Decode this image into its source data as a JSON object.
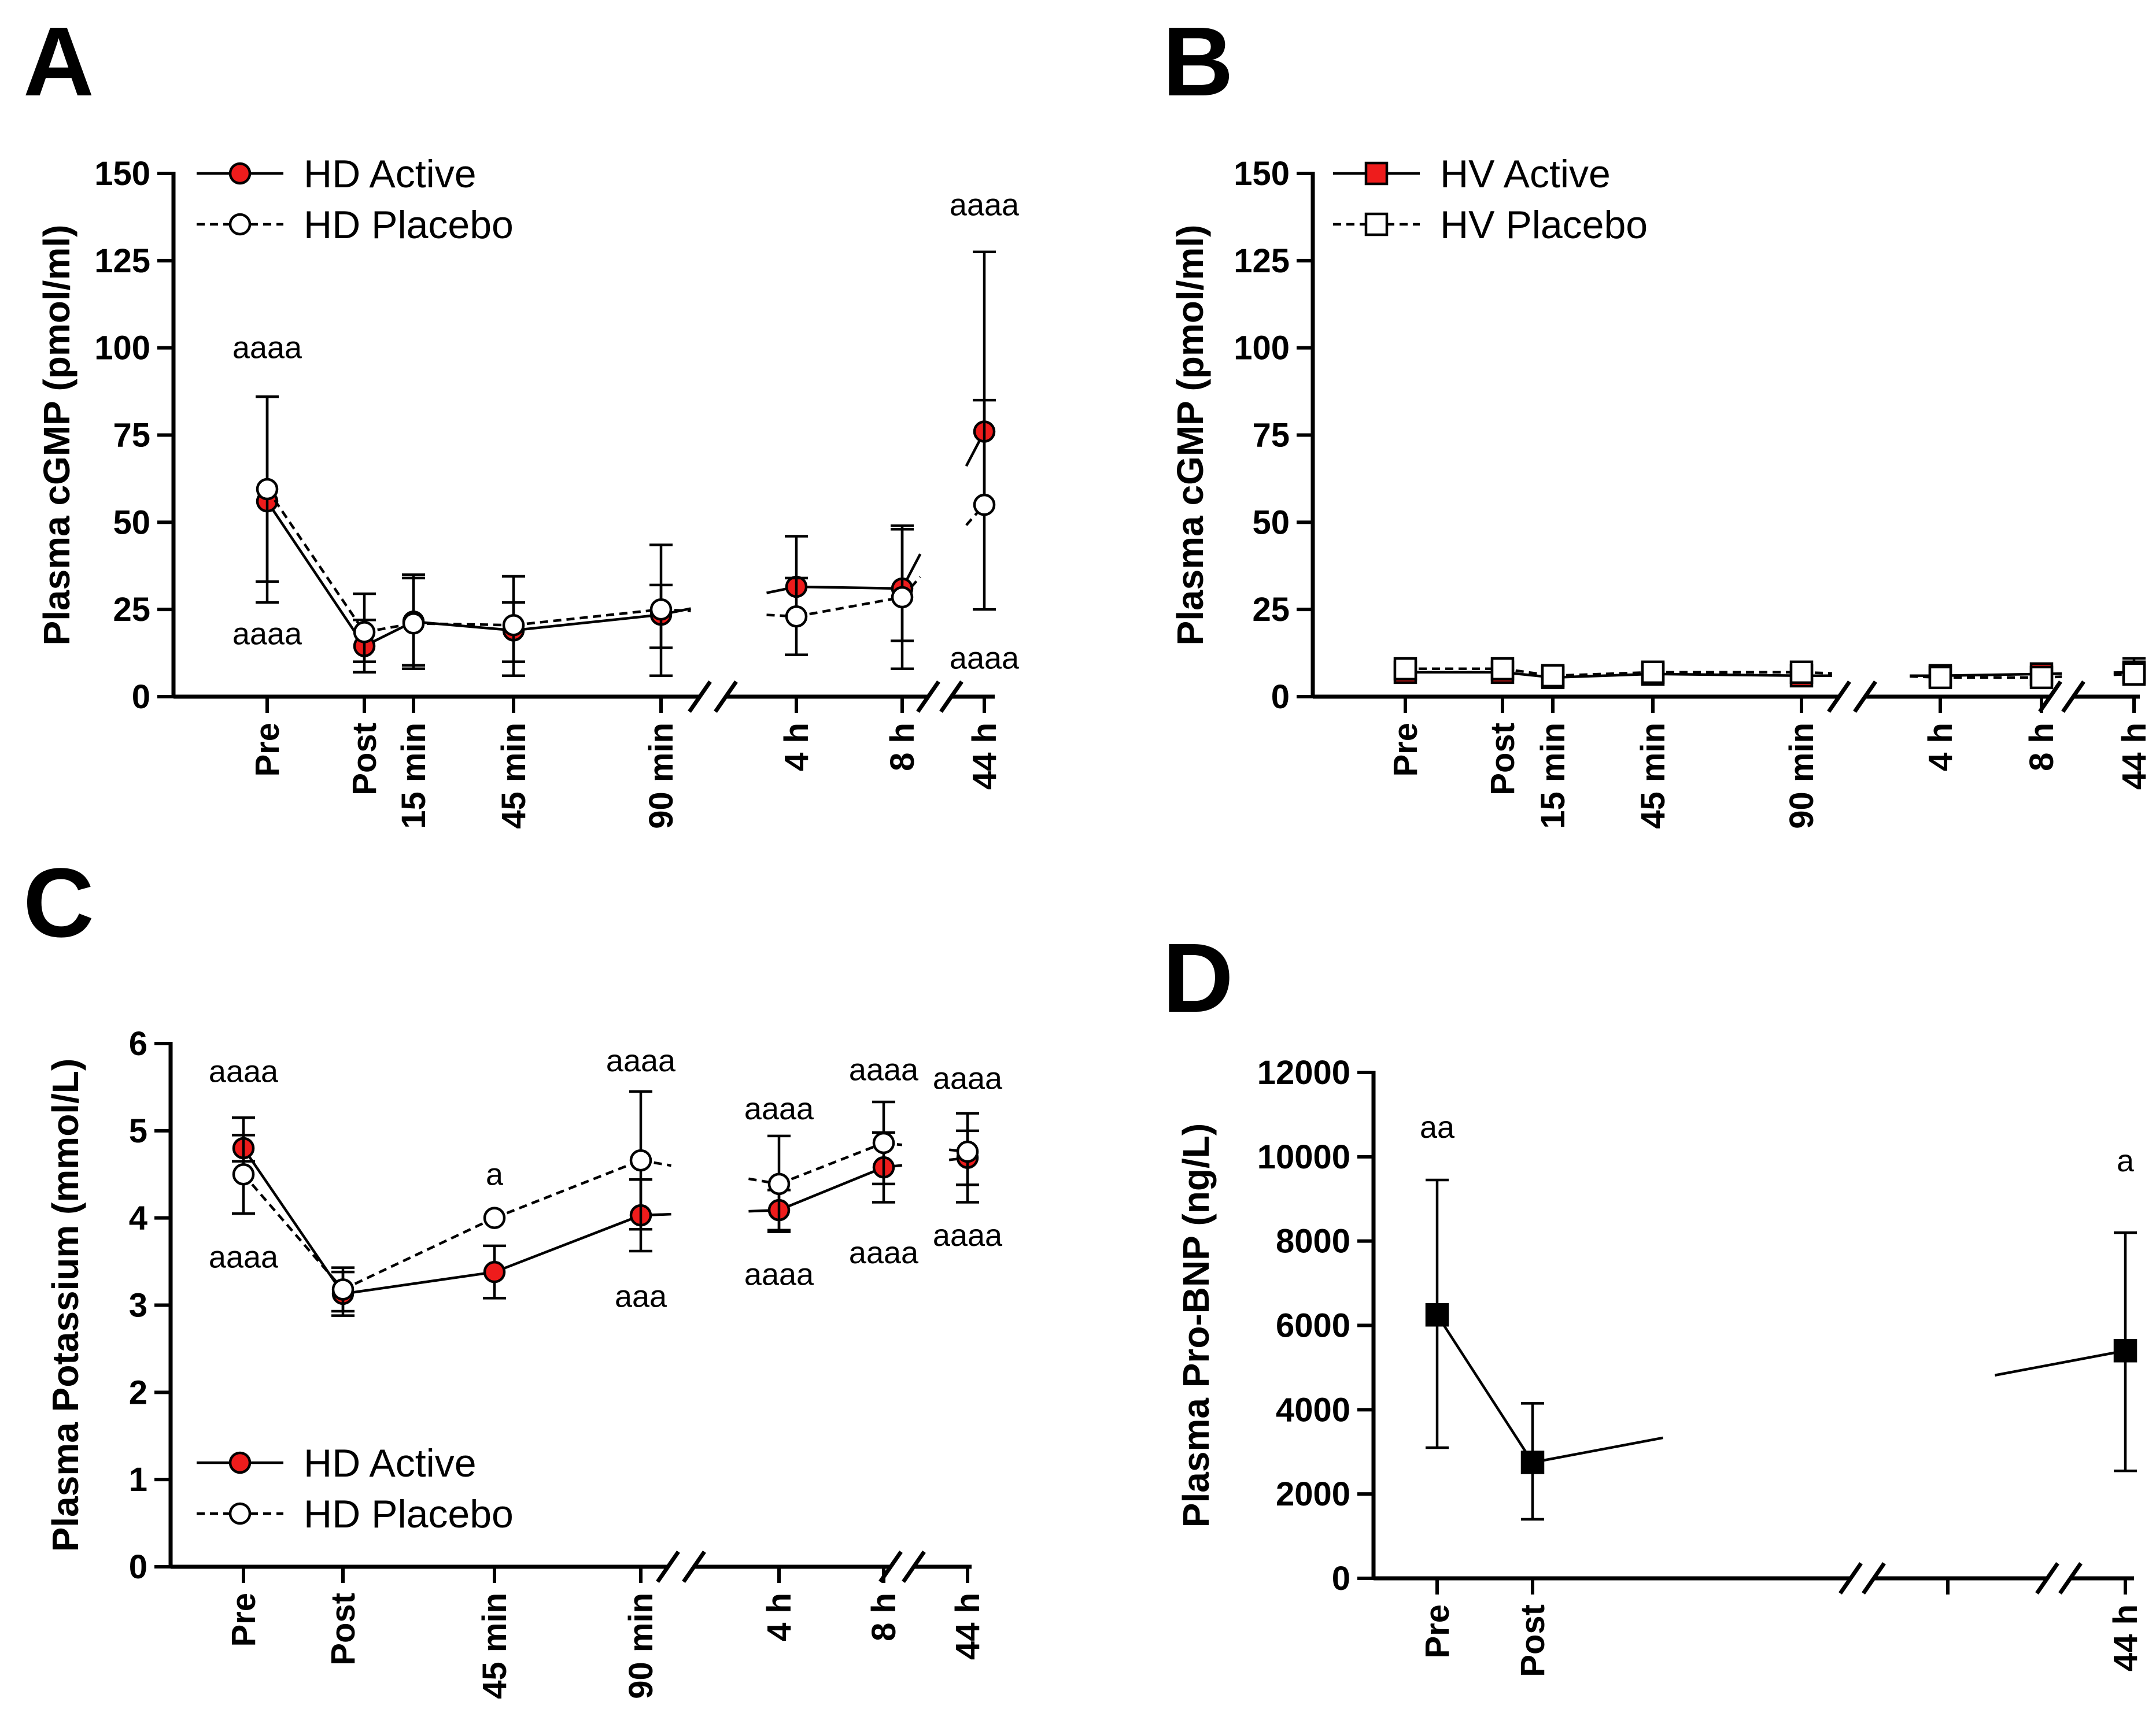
{
  "figure": {
    "panels": [
      {
        "id": "A",
        "letter": "A"
      },
      {
        "id": "B",
        "letter": "B"
      },
      {
        "id": "C",
        "letter": "C"
      },
      {
        "id": "D",
        "letter": "D"
      }
    ]
  },
  "chart_data": [
    {
      "panel": "A",
      "type": "line",
      "ylabel": "Plasma cGMP (pmol/ml)",
      "ylim": [
        0,
        150
      ],
      "yticks": [
        "0",
        "25",
        "50",
        "75",
        "100",
        "125",
        "150"
      ],
      "x_segments": [
        {
          "categories": [
            "Pre",
            "Post",
            "15 min",
            "45 min",
            "90 min"
          ]
        },
        {
          "categories": [
            "4 h",
            "8 h"
          ]
        },
        {
          "categories": [
            "44 h"
          ]
        }
      ],
      "legend_position": "top-left",
      "series": [
        {
          "name": "HD Active",
          "marker": "circle",
          "fill": "#ee1c1c",
          "dashed": false,
          "x": [
            "Pre",
            "Post",
            "15 min",
            "45 min",
            "90 min",
            "4 h",
            "8 h",
            "44 h"
          ],
          "values": [
            56,
            14.5,
            21.5,
            19,
            23.5,
            31.5,
            31,
            76
          ],
          "err_low": [
            27,
            7,
            8,
            6,
            6,
            null,
            8,
            25
          ],
          "err_high": [
            86,
            22,
            35,
            27,
            32,
            46,
            48,
            127.5
          ]
        },
        {
          "name": "HD Placebo",
          "marker": "circle",
          "fill": "#ffffff",
          "dashed": true,
          "x": [
            "Pre",
            "Post",
            "15 min",
            "45 min",
            "90 min",
            "4 h",
            "8 h",
            "44 h"
          ],
          "values": [
            59.5,
            18.5,
            21,
            20.5,
            25,
            23,
            28.5,
            55
          ],
          "err_low": [
            33,
            10,
            9,
            10,
            14,
            12,
            16,
            null
          ],
          "err_high": [
            86,
            29.5,
            34,
            34.5,
            43.5,
            34,
            49,
            85
          ]
        }
      ],
      "annotations": [
        {
          "text": "aaaa",
          "x": "Pre",
          "y": 100
        },
        {
          "text": "aaaa",
          "x": "Pre",
          "y": 18
        },
        {
          "text": "aaaa",
          "x": "44 h",
          "y": 141
        },
        {
          "text": "aaaa",
          "x": "44 h",
          "y": 11
        }
      ]
    },
    {
      "panel": "B",
      "type": "line",
      "ylabel": "Plasma cGMP (pmol/ml)",
      "ylim": [
        0,
        150
      ],
      "yticks": [
        "0",
        "25",
        "50",
        "75",
        "100",
        "125",
        "150"
      ],
      "x_segments": [
        {
          "categories": [
            "Pre",
            "Post",
            "15 min",
            "45 min",
            "90 min"
          ]
        },
        {
          "categories": [
            "4 h",
            "8 h"
          ]
        },
        {
          "categories": [
            "44 h"
          ]
        }
      ],
      "legend_position": "top-left",
      "series": [
        {
          "name": "HV Active",
          "marker": "square",
          "fill": "#ee1c1c",
          "dashed": false,
          "x": [
            "Pre",
            "Post",
            "15 min",
            "45 min",
            "90 min",
            "4 h",
            "8 h",
            "44 h"
          ],
          "values": [
            7,
            7,
            5.5,
            6.5,
            6,
            6,
            6.5,
            7
          ],
          "err_low": [
            4,
            4,
            4,
            5,
            5,
            5,
            5,
            5
          ],
          "err_high": [
            11,
            11,
            7,
            8,
            8,
            7,
            8,
            11
          ]
        },
        {
          "name": "HV Placebo",
          "marker": "square",
          "fill": "#ffffff",
          "dashed": true,
          "x": [
            "Pre",
            "Post",
            "15 min",
            "45 min",
            "90 min",
            "4 h",
            "8 h",
            "44 h"
          ],
          "values": [
            8,
            8,
            6,
            7,
            7,
            5.5,
            5.5,
            6.5
          ],
          "err_low": [
            5,
            5,
            4,
            5,
            5,
            4,
            4,
            5
          ],
          "err_high": [
            11,
            11,
            7,
            8,
            9,
            7,
            7,
            9
          ]
        }
      ],
      "annotations": []
    },
    {
      "panel": "C",
      "type": "line",
      "ylabel": "Plasma Potassium (mmol/L)",
      "ylim": [
        0,
        6
      ],
      "yticks": [
        "0",
        "1",
        "2",
        "3",
        "4",
        "5",
        "6"
      ],
      "x_segments": [
        {
          "categories": [
            "Pre",
            "Post",
            "45 min",
            "90 min"
          ]
        },
        {
          "categories": [
            "4 h",
            "8 h"
          ]
        },
        {
          "categories": [
            "44 h"
          ]
        }
      ],
      "legend_position": "bottom-left",
      "series": [
        {
          "name": "HD Active",
          "marker": "circle",
          "fill": "#ee1c1c",
          "dashed": false,
          "x": [
            "Pre",
            "Post",
            "45 min",
            "90 min",
            "4 h",
            "8 h",
            "44 h"
          ],
          "values": [
            4.8,
            3.13,
            3.38,
            4.03,
            4.09,
            4.58,
            4.69
          ],
          "err_low": [
            4.65,
            2.88,
            3.08,
            3.62,
            3.86,
            4.18,
            4.38
          ],
          "err_high": [
            4.95,
            3.38,
            3.68,
            4.44,
            4.32,
            4.98,
            5.0
          ]
        },
        {
          "name": "HD Placebo",
          "marker": "circle",
          "fill": "#ffffff",
          "dashed": true,
          "x": [
            "Pre",
            "Post",
            "45 min",
            "90 min",
            "4 h",
            "8 h",
            "44 h"
          ],
          "values": [
            4.5,
            3.18,
            4.0,
            4.66,
            4.39,
            4.86,
            4.76
          ],
          "err_low": [
            4.05,
            2.93,
            null,
            3.87,
            3.84,
            4.39,
            4.18
          ],
          "err_high": [
            5.15,
            3.43,
            null,
            5.45,
            4.94,
            5.33,
            5.2
          ]
        }
      ],
      "annotations": [
        {
          "text": "aaaa",
          "x": "Pre",
          "y": 5.68
        },
        {
          "text": "aaaa",
          "x": "Pre",
          "y": 3.55
        },
        {
          "text": "a",
          "x": "45 min",
          "y": 4.5
        },
        {
          "text": "aaaa",
          "x": "90 min",
          "y": 5.8
        },
        {
          "text": "aaa",
          "x": "90 min",
          "y": 3.1
        },
        {
          "text": "aaaa",
          "x": "4 h",
          "y": 5.25
        },
        {
          "text": "aaaa",
          "x": "4 h",
          "y": 3.35
        },
        {
          "text": "aaaa",
          "x": "8 h",
          "y": 5.7
        },
        {
          "text": "aaaa",
          "x": "8 h",
          "y": 3.6
        },
        {
          "text": "aaaa",
          "x": "44 h",
          "y": 5.6
        },
        {
          "text": "aaaa",
          "x": "44 h",
          "y": 3.8
        }
      ]
    },
    {
      "panel": "D",
      "type": "line",
      "ylabel": "Plasma Pro-BNP (ng/L)",
      "ylim": [
        0,
        12000
      ],
      "yticks": [
        "0",
        "2000",
        "4000",
        "6000",
        "8000",
        "10000",
        "12000"
      ],
      "x_segments": [
        {
          "categories": [
            "Pre",
            "Post"
          ]
        },
        {
          "categories": []
        },
        {
          "categories": [
            "44 h"
          ]
        }
      ],
      "legend_position": "none",
      "series": [
        {
          "marker": "square",
          "fill": "#000000",
          "dashed": false,
          "x": [
            "Pre",
            "Post",
            "44 h"
          ],
          "values": [
            6250,
            2750,
            5400
          ],
          "err_low": [
            3100,
            1400,
            2550
          ],
          "err_high": [
            9450,
            4150,
            8200
          ]
        }
      ],
      "annotations": [
        {
          "text": "aa",
          "x": "Pre",
          "y": 10700
        },
        {
          "text": "a",
          "x": "44 h",
          "y": 9900
        }
      ]
    }
  ]
}
